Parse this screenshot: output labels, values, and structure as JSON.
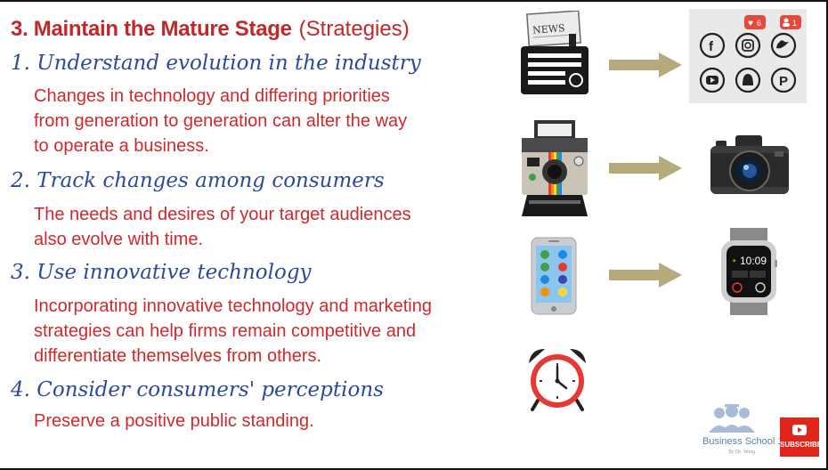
{
  "title": {
    "main": "3. Maintain the Mature Stage",
    "sub": "(Strategies)"
  },
  "sections": [
    {
      "heading": "1. Understand evolution in the industry",
      "lines": [
        "Changes in technology and differing priorities",
        "from generation to generation can alter the way",
        "to operate a business."
      ]
    },
    {
      "heading": "2. Track changes among consumers",
      "lines": [
        "The needs and desires of your target audiences",
        "also evolve with time."
      ]
    },
    {
      "heading": "3. Use innovative technology",
      "lines": [
        "Incorporating innovative technology and marketing",
        "strategies can help firms remain competitive and",
        "differentiate themselves from others."
      ]
    },
    {
      "heading": "4. Consider consumers' perceptions",
      "lines": [
        "Preserve a positive public standing."
      ]
    }
  ],
  "images": {
    "newspaper_label": "NEWS",
    "social_like_badge": "6",
    "social_follow_badge": "1",
    "watch_time": "10:09"
  },
  "branding": {
    "logo_text": "Business School 101",
    "logo_tagline": "By Dr. Wong",
    "subscribe_label": "SUBSCRIBE"
  },
  "colors": {
    "title_red": "#c4262a",
    "heading_blue": "#2d4a9a",
    "body_red": "#d0282c",
    "arrow_khaki": "#b5aa7b",
    "subscribe_red": "#e1251b"
  },
  "icons": [
    "newspaper-radio-icon",
    "social-media-icon",
    "polaroid-camera-icon",
    "dslr-camera-icon",
    "smartphone-icon",
    "smartwatch-icon",
    "alarm-clock-icon"
  ]
}
